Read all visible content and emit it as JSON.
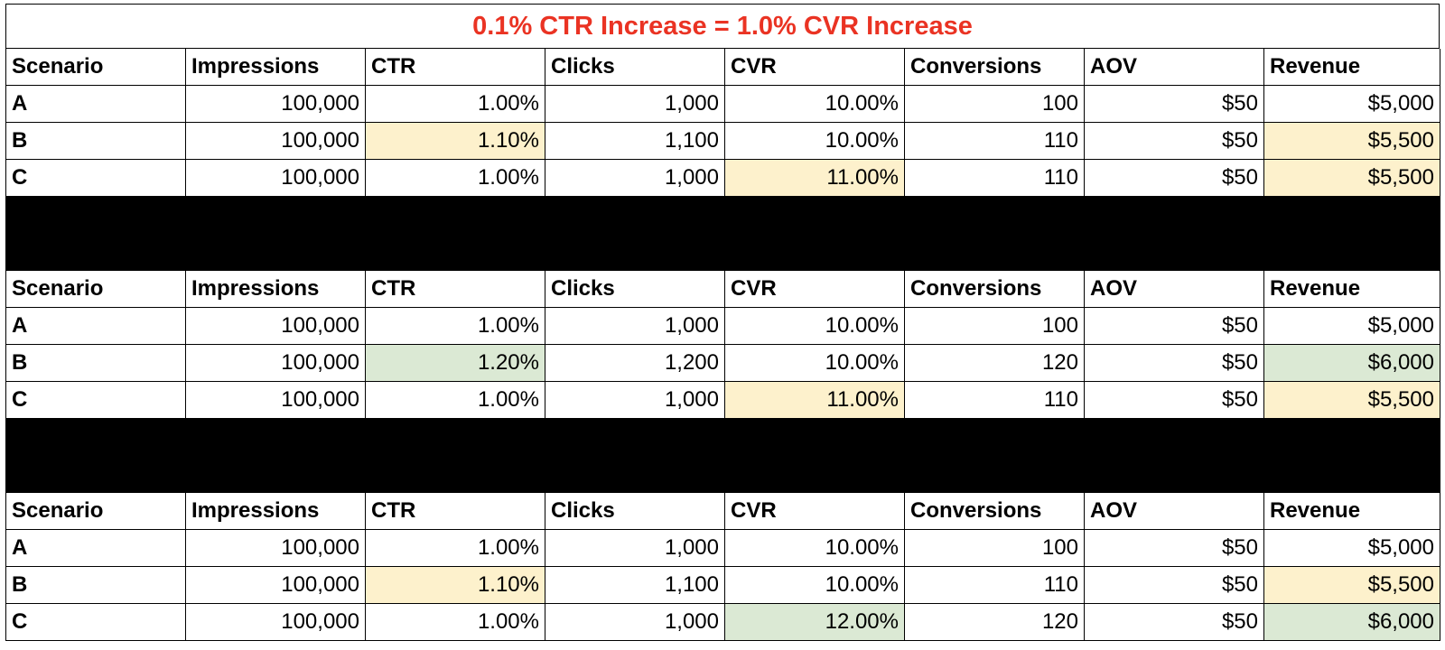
{
  "title": "0.1% CTR Increase = 1.0% CVR Increase",
  "headers": [
    "Scenario",
    "Impressions",
    "CTR",
    "Clicks",
    "CVR",
    "Conversions",
    "AOV",
    "Revenue"
  ],
  "tables": [
    {
      "rows": [
        {
          "scenario": "A",
          "impressions": "100,000",
          "ctr": "1.00%",
          "clicks": "1,000",
          "cvr": "10.00%",
          "conversions": "100",
          "aov": "$50",
          "revenue": "$5,000",
          "highlight": {}
        },
        {
          "scenario": "B",
          "impressions": "100,000",
          "ctr": "1.10%",
          "clicks": "1,100",
          "cvr": "10.00%",
          "conversions": "110",
          "aov": "$50",
          "revenue": "$5,500",
          "highlight": {
            "ctr": "yellow",
            "revenue": "yellow"
          }
        },
        {
          "scenario": "C",
          "impressions": "100,000",
          "ctr": "1.00%",
          "clicks": "1,000",
          "cvr": "11.00%",
          "conversions": "110",
          "aov": "$50",
          "revenue": "$5,500",
          "highlight": {
            "cvr": "yellow",
            "revenue": "yellow"
          }
        }
      ]
    },
    {
      "rows": [
        {
          "scenario": "A",
          "impressions": "100,000",
          "ctr": "1.00%",
          "clicks": "1,000",
          "cvr": "10.00%",
          "conversions": "100",
          "aov": "$50",
          "revenue": "$5,000",
          "highlight": {}
        },
        {
          "scenario": "B",
          "impressions": "100,000",
          "ctr": "1.20%",
          "clicks": "1,200",
          "cvr": "10.00%",
          "conversions": "120",
          "aov": "$50",
          "revenue": "$6,000",
          "highlight": {
            "ctr": "green",
            "revenue": "green"
          }
        },
        {
          "scenario": "C",
          "impressions": "100,000",
          "ctr": "1.00%",
          "clicks": "1,000",
          "cvr": "11.00%",
          "conversions": "110",
          "aov": "$50",
          "revenue": "$5,500",
          "highlight": {
            "cvr": "yellow",
            "revenue": "yellow"
          }
        }
      ]
    },
    {
      "rows": [
        {
          "scenario": "A",
          "impressions": "100,000",
          "ctr": "1.00%",
          "clicks": "1,000",
          "cvr": "10.00%",
          "conversions": "100",
          "aov": "$50",
          "revenue": "$5,000",
          "highlight": {}
        },
        {
          "scenario": "B",
          "impressions": "100,000",
          "ctr": "1.10%",
          "clicks": "1,100",
          "cvr": "10.00%",
          "conversions": "110",
          "aov": "$50",
          "revenue": "$5,500",
          "highlight": {
            "ctr": "yellow",
            "revenue": "yellow"
          }
        },
        {
          "scenario": "C",
          "impressions": "100,000",
          "ctr": "1.00%",
          "clicks": "1,000",
          "cvr": "12.00%",
          "conversions": "120",
          "aov": "$50",
          "revenue": "$6,000",
          "highlight": {
            "cvr": "green",
            "revenue": "green"
          }
        }
      ]
    }
  ],
  "colors": {
    "title": "#ea3323",
    "yellow_highlight": "#fdf1cc",
    "green_highlight": "#dbe9d4",
    "separator": "#000000"
  }
}
